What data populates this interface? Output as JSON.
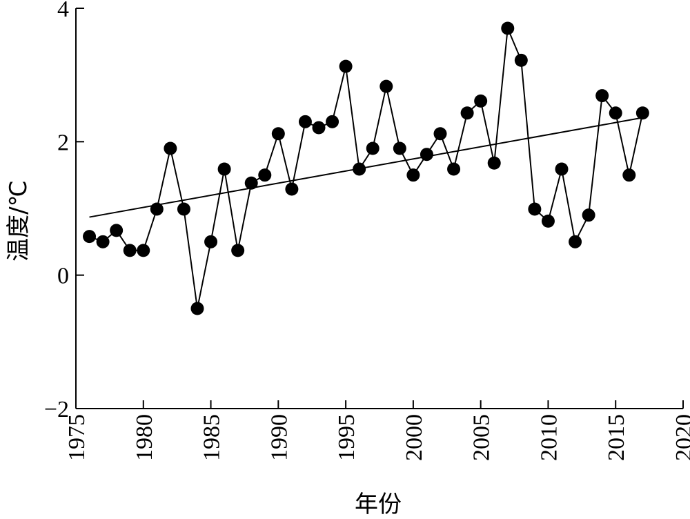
{
  "chart_data": {
    "type": "scatter",
    "xlabel": "年份",
    "ylabel": "温度/℃",
    "xlim": [
      1975,
      2020
    ],
    "ylim": [
      -2,
      4
    ],
    "x_ticks": [
      1975,
      1980,
      1985,
      1990,
      1995,
      2000,
      2005,
      2010,
      2015,
      2020
    ],
    "y_ticks": [
      -2,
      0,
      2,
      4
    ],
    "x_tick_labels": [
      "1975",
      "1980",
      "1985",
      "1990",
      "1995",
      "2000",
      "2005",
      "2010",
      "2015",
      "2020"
    ],
    "y_tick_labels": [
      "−2",
      "0",
      "2",
      "4"
    ],
    "grid": false,
    "series": [
      {
        "style": "line+markers",
        "color": "#000000",
        "x": [
          1976,
          1977,
          1978,
          1979,
          1980,
          1981,
          1982,
          1983,
          1984,
          1985,
          1986,
          1987,
          1988,
          1989,
          1990,
          1991,
          1992,
          1993,
          1994,
          1995,
          1996,
          1997,
          1998,
          1999,
          2000,
          2001,
          2002,
          2003,
          2004,
          2005,
          2006,
          2007,
          2008,
          2009,
          2010,
          2011,
          2012,
          2013,
          2014,
          2015,
          2016,
          2017
        ],
        "y": [
          0.58,
          0.5,
          0.67,
          0.37,
          0.37,
          0.99,
          1.9,
          0.99,
          -0.5,
          0.5,
          1.59,
          0.37,
          1.38,
          1.5,
          2.12,
          1.29,
          2.3,
          2.21,
          2.3,
          3.13,
          1.59,
          1.9,
          2.83,
          1.9,
          1.5,
          1.81,
          2.12,
          1.59,
          2.43,
          2.61,
          1.68,
          3.7,
          3.22,
          0.99,
          0.81,
          1.59,
          0.5,
          0.9,
          2.69,
          2.43,
          1.5,
          2.43
        ]
      },
      {
        "style": "trend-line",
        "color": "#000000",
        "x": [
          1976,
          2017
        ],
        "y": [
          0.87,
          2.36
        ]
      }
    ]
  }
}
